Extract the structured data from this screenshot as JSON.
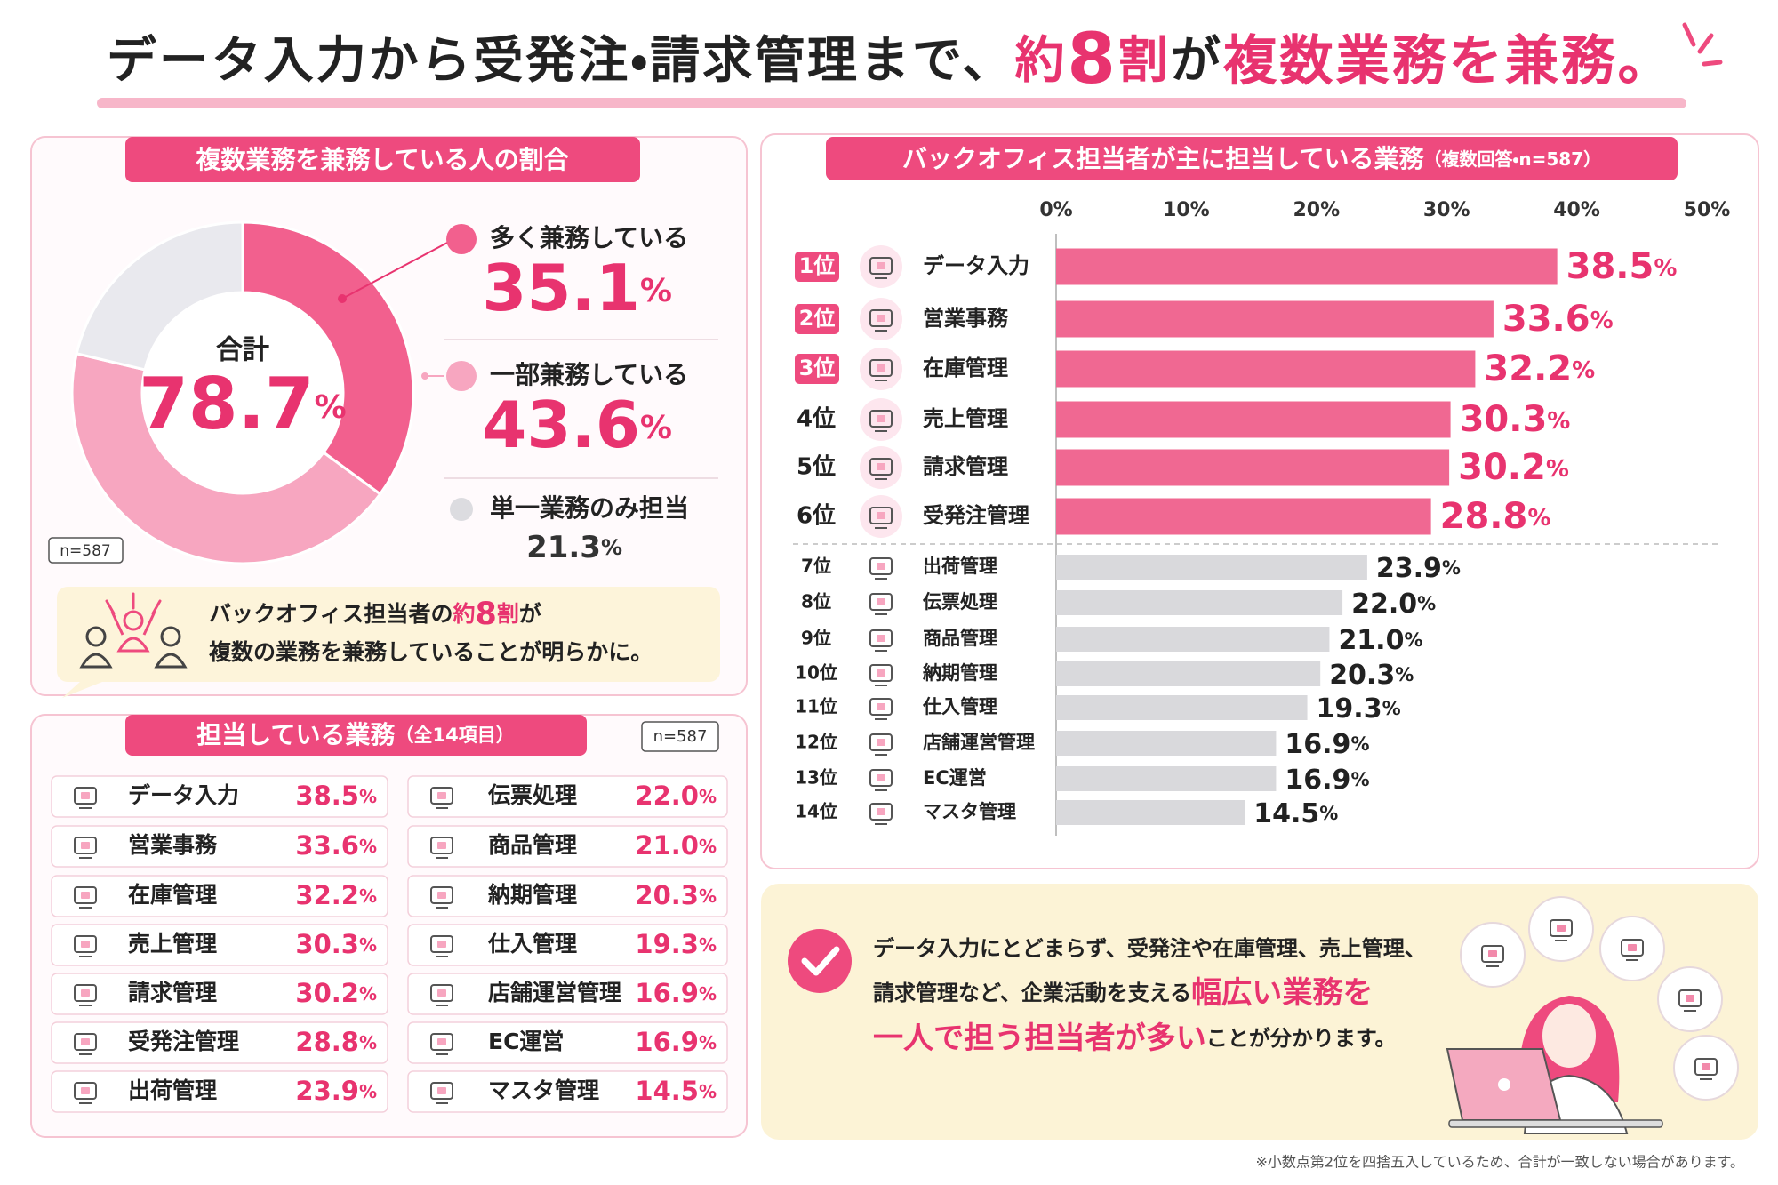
{
  "title": {
    "parts": [
      {
        "text": "データ入力から受発注・請求管理まで、",
        "style": "dark"
      },
      {
        "text": "約",
        "style": "pink"
      },
      {
        "text": "8",
        "style": "pink-big"
      },
      {
        "text": "割",
        "style": "pink"
      },
      {
        "text": "が",
        "style": "dark"
      },
      {
        "text": "複数業務を兼務。",
        "style": "pink-large"
      }
    ]
  },
  "chart_data": [
    {
      "type": "donut",
      "title": "複数業務を兼務している人の割合",
      "categories": [
        "多く兼務している",
        "一部兼務している",
        "単一業務のみ担当"
      ],
      "values": [
        35.1,
        43.6,
        21.3
      ],
      "colors": [
        "#f2608e",
        "#f7a6c0",
        "#e9e9ee"
      ],
      "label_colors": [
        "#e8336f",
        "#e8336f",
        "#333333"
      ],
      "unit": "%",
      "center_label": "合計",
      "total": 78.7,
      "note": "n=587"
    },
    {
      "type": "bar",
      "orientation": "horizontal",
      "title": "バックオフィス担当者が主に担当している業務",
      "subtitle": "（複数回答・n=587）",
      "ranks": [
        "1位",
        "2位",
        "3位",
        "4位",
        "5位",
        "6位",
        "7位",
        "8位",
        "9位",
        "10位",
        "11位",
        "12位",
        "13位",
        "14位"
      ],
      "categories": [
        "データ入力",
        "営業事務",
        "在庫管理",
        "売上管理",
        "請求管理",
        "受発注管理",
        "出荷管理",
        "伝票処理",
        "商品管理",
        "納期管理",
        "仕入管理",
        "店舗運営管理",
        "EC運営",
        "マスタ管理"
      ],
      "values": [
        38.5,
        33.6,
        32.2,
        30.3,
        30.2,
        28.8,
        23.9,
        22.0,
        21.0,
        20.3,
        19.3,
        16.9,
        16.9,
        14.5
      ],
      "value_labels": [
        "38.5",
        "33.6",
        "32.2",
        "30.3",
        "30.2",
        "28.8",
        "23.9",
        "22.0",
        "21.0",
        "20.3",
        "19.3",
        "16.9",
        "16.9",
        "14.5"
      ],
      "colors": [
        "#f06892",
        "#f06892",
        "#f06892",
        "#f06892",
        "#f06892",
        "#f06892",
        "#d9d9dc",
        "#d9d9dc",
        "#d9d9dc",
        "#d9d9dc",
        "#d9d9dc",
        "#d9d9dc",
        "#d9d9dc",
        "#d9d9dc"
      ],
      "label_colors": [
        "#e8336f",
        "#e8336f",
        "#e8336f",
        "#e8336f",
        "#e8336f",
        "#e8336f",
        "#222222",
        "#222222",
        "#222222",
        "#222222",
        "#222222",
        "#222222",
        "#222222",
        "#222222"
      ],
      "unit": "%",
      "xlim": [
        0,
        50
      ],
      "xticks": [
        {
          "value": 0,
          "label": "0%"
        },
        {
          "value": 10,
          "label": "10%"
        },
        {
          "value": 20,
          "label": "20%"
        },
        {
          "value": 30,
          "label": "30%"
        },
        {
          "value": 40,
          "label": "40%"
        },
        {
          "value": 50,
          "label": "50%"
        }
      ]
    }
  ],
  "callout": {
    "lines": [
      [
        {
          "text": "バックオフィス担当者の",
          "style": "dark"
        },
        {
          "text": "約",
          "style": "pink"
        },
        {
          "text": "8",
          "style": "pink-big"
        },
        {
          "text": "割",
          "style": "pink"
        },
        {
          "text": "が",
          "style": "dark"
        }
      ],
      [
        {
          "text": "複数の業務を兼務していることが明らかに。",
          "style": "dark"
        }
      ]
    ]
  },
  "task_table": {
    "title": "担当している業務",
    "subtitle": "（全14項目）",
    "note": "n=587",
    "unit": "%",
    "items": [
      {
        "name": "データ入力",
        "value": "38.5"
      },
      {
        "name": "営業事務",
        "value": "33.6"
      },
      {
        "name": "在庫管理",
        "value": "32.2"
      },
      {
        "name": "売上管理",
        "value": "30.3"
      },
      {
        "name": "請求管理",
        "value": "30.2"
      },
      {
        "name": "受発注管理",
        "value": "28.8"
      },
      {
        "name": "出荷管理",
        "value": "23.9"
      },
      {
        "name": "伝票処理",
        "value": "22.0"
      },
      {
        "name": "商品管理",
        "value": "21.0"
      },
      {
        "name": "納期管理",
        "value": "20.3"
      },
      {
        "name": "仕入管理",
        "value": "19.3"
      },
      {
        "name": "店舗運営管理",
        "value": "16.9"
      },
      {
        "name": "EC運営",
        "value": "16.9"
      },
      {
        "name": "マスタ管理",
        "value": "14.5"
      }
    ]
  },
  "summary": {
    "lines": [
      [
        {
          "text": "データ入力にとどまらず、受発注や在庫管理、売上管理、",
          "style": "dark"
        }
      ],
      [
        {
          "text": "請求管理など、企業活動を支える",
          "style": "dark"
        },
        {
          "text": "幅広い業務を",
          "style": "pink"
        }
      ],
      [
        {
          "text": "一人で担う担当者が多い",
          "style": "pink"
        },
        {
          "text": "ことが分かります。",
          "style": "dark"
        }
      ]
    ]
  },
  "footnote": "※小数点第2位を四捨五入しているため、合計が一致しない場合があります。"
}
